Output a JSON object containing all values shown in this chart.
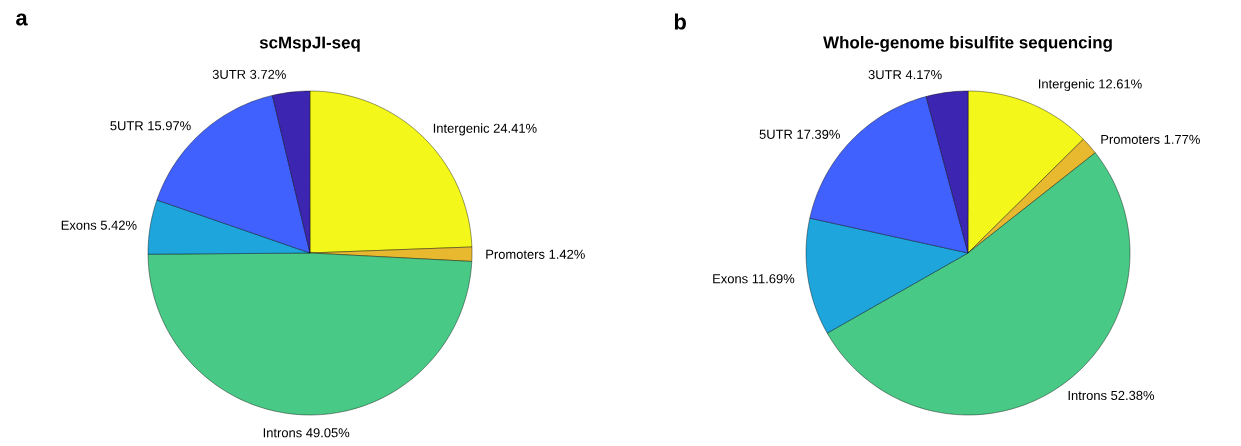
{
  "chart_data": [
    {
      "type": "pie",
      "title": "scMspJI-seq",
      "annotations": [
        "a"
      ],
      "data_labels": true,
      "categories": [
        "Intergenic",
        "Promoters",
        "Introns",
        "Exons",
        "5UTR",
        "3UTR"
      ],
      "values": [
        24.41,
        1.42,
        49.05,
        5.42,
        15.97,
        3.72
      ],
      "value_labels": [
        "24.41%",
        "1.42%",
        "49.05%",
        "5.42%",
        "15.97%",
        "3.72%"
      ],
      "colors": [
        "#f3f81a",
        "#e8b92f",
        "#48c985",
        "#1ea6dc",
        "#4061fd",
        "#3c25b0"
      ]
    },
    {
      "type": "pie",
      "title": "Whole-genome bisulfite sequencing",
      "annotations": [
        "b"
      ],
      "data_labels": true,
      "categories": [
        "Intergenic",
        "Promoters",
        "Introns",
        "Exons",
        "5UTR",
        "3UTR"
      ],
      "values": [
        12.61,
        1.77,
        52.38,
        11.69,
        17.39,
        4.17
      ],
      "value_labels": [
        "12.61%",
        "1.77%",
        "52.38%",
        "11.69%",
        "17.39%",
        "4.17%"
      ],
      "colors": [
        "#f3f81a",
        "#e8b92f",
        "#48c985",
        "#1ea6dc",
        "#4061fd",
        "#3c25b0"
      ]
    }
  ]
}
